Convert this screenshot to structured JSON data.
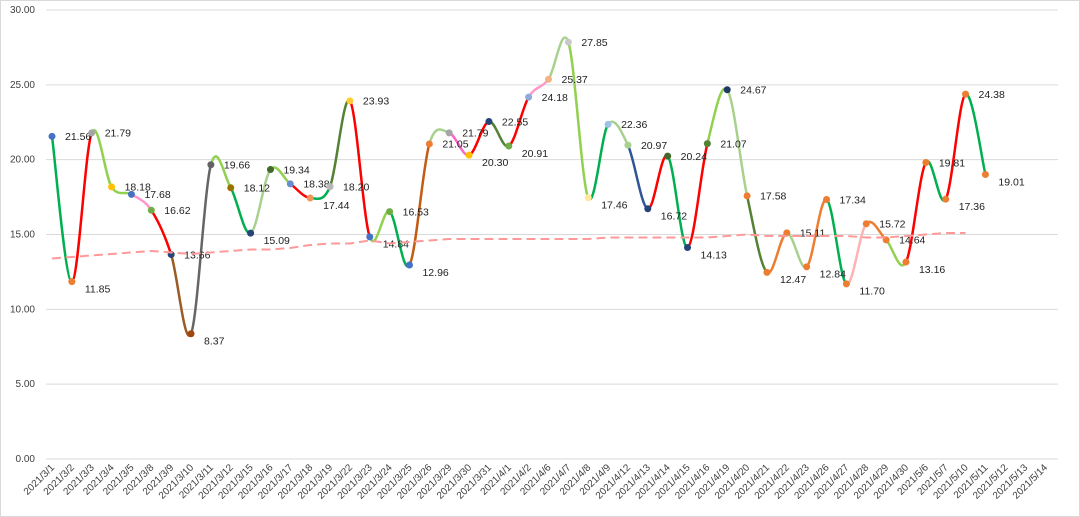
{
  "chart_data": {
    "type": "line",
    "categories": [
      "2021/3/1",
      "2021/3/2",
      "2021/3/3",
      "2021/3/4",
      "2021/3/5",
      "2021/3/8",
      "2021/3/9",
      "2021/3/10",
      "2021/3/11",
      "2021/3/12",
      "2021/3/15",
      "2021/3/16",
      "2021/3/17",
      "2021/3/18",
      "2021/3/19",
      "2021/3/22",
      "2021/3/23",
      "2021/3/24",
      "2021/3/25",
      "2021/3/26",
      "2021/3/29",
      "2021/3/30",
      "2021/3/31",
      "2021/4/1",
      "2021/4/2",
      "2021/4/6",
      "2021/4/7",
      "2021/4/8",
      "2021/4/9",
      "2021/4/12",
      "2021/4/13",
      "2021/4/14",
      "2021/4/15",
      "2021/4/16",
      "2021/4/19",
      "2021/4/20",
      "2021/4/21",
      "2021/4/22",
      "2021/4/23",
      "2021/4/26",
      "2021/4/27",
      "2021/4/28",
      "2021/4/29",
      "2021/4/30",
      "2021/5/6",
      "2021/5/7",
      "2021/5/10",
      "2021/5/11",
      "2021/5/12",
      "2021/5/13",
      "2021/5/14"
    ],
    "series": [
      {
        "values": [
          21.56,
          11.85,
          21.79,
          18.18,
          17.68,
          16.62,
          13.66,
          8.37,
          19.66,
          18.12,
          15.09,
          19.34,
          18.38,
          17.44,
          18.2,
          23.93,
          14.84,
          16.53,
          12.96,
          21.05,
          21.79,
          20.3,
          22.55,
          20.91,
          24.18,
          25.37,
          27.85,
          17.46,
          22.36,
          20.97,
          16.72,
          20.24,
          14.13,
          21.07,
          24.67,
          17.58,
          12.47,
          15.11,
          12.84,
          17.34,
          11.7,
          15.72,
          14.64,
          13.16,
          19.81,
          17.36,
          24.38,
          19.01,
          null,
          null,
          null
        ],
        "value_labels": [
          "21.56",
          "11.85",
          "21.79",
          "18.18",
          "17.68",
          "16.62",
          "13.66",
          "8.37",
          "19.66",
          "18.12",
          "15.09",
          "19.34",
          "18.38",
          "17.44",
          "18.20",
          "23.93",
          "14.84",
          "16.53",
          "12.96",
          "21.05",
          "21.79",
          "20.30",
          "22.55",
          "20.91",
          "24.18",
          "25.37",
          "27.85",
          "17.46",
          "22.36",
          "20.97",
          "16.72",
          "20.24",
          "14.13",
          "21.07",
          "24.67",
          "17.58",
          "12.47",
          "15.11",
          "12.84",
          "17.34",
          "11.70",
          "15.72",
          "14.64",
          "13.16",
          "19.81",
          "17.36",
          "24.38",
          "19.01",
          null,
          null,
          null
        ],
        "smooth": true,
        "segment_colors": [
          "#00b050",
          "#ff0000",
          "#92d050",
          "#92d050",
          "#ff99cc",
          "#ff0000",
          "#9c5b24",
          "#666666",
          "#92d050",
          "#00b050",
          "#a9d18e",
          "#92d050",
          "#ff0000",
          "#00b050",
          "#548235",
          "#ff0000",
          "#92d050",
          "#00b050",
          "#c55a11",
          "#a9d18e",
          "#ff66cc",
          "#ff0000",
          "#548235",
          "#ff0000",
          "#ff99cc",
          "#a9d18e",
          "#92d050",
          "#00b050",
          "#a9d18e",
          "#2f5597",
          "#ff0000",
          "#00b050",
          "#ff0000",
          "#92d050",
          "#a9d18e",
          "#548235",
          "#ed7d31",
          "#a9d18e",
          "#ed7d31",
          "#00b050",
          "#ffb3b3",
          "#ed7d31",
          "#92d050",
          "#ff0000",
          "#00b050",
          "#ff0000",
          "#00b050"
        ],
        "marker_colors": [
          "#4472c4",
          "#ed7d31",
          "#a5a5a5",
          "#ffc000",
          "#4472c4",
          "#70ad47",
          "#264478",
          "#9e480e",
          "#636363",
          "#997300",
          "#264478",
          "#43682b",
          "#698ed0",
          "#f1975a",
          "#b7b7b7",
          "#ffcd33",
          "#4472c4",
          "#70ad47",
          "#4472c4",
          "#ed7d31",
          "#a5a5a5",
          "#ffc000",
          "#264478",
          "#70ad47",
          "#8faadc",
          "#f4b183",
          "#c9c9c9",
          "#ffe699",
          "#9dc3e6",
          "#a9d18e",
          "#264478",
          "#43682b",
          "#264478",
          "#548235",
          "#203864",
          "#ed7d31",
          "#ed7d31",
          "#ed7d31",
          "#ed7d31",
          "#ed7d31",
          "#ed7d31",
          "#ed7d31",
          "#ed7d31",
          "#ed7d31",
          "#ed7d31",
          "#ed7d31",
          "#ed7d31",
          "#ed7d31"
        ]
      },
      {
        "values": [
          13.4,
          13.5,
          13.6,
          13.7,
          13.8,
          13.9,
          13.8,
          13.7,
          13.8,
          13.9,
          14.0,
          14.0,
          14.1,
          14.3,
          14.4,
          14.4,
          14.6,
          14.4,
          14.5,
          14.6,
          14.7,
          14.7,
          14.7,
          14.7,
          14.7,
          14.7,
          14.7,
          14.7,
          14.8,
          14.8,
          14.8,
          14.8,
          14.8,
          14.8,
          14.9,
          15.0,
          14.9,
          14.9,
          14.9,
          14.9,
          14.9,
          14.8,
          14.8,
          14.9,
          15.0,
          15.1,
          15.1,
          null,
          null,
          null,
          null
        ],
        "color": "#ff9999",
        "dashed": true
      }
    ],
    "ylim": [
      0,
      30
    ],
    "yticks": [
      {
        "value": 0,
        "label": "0.00"
      },
      {
        "value": 5,
        "label": "5.00"
      },
      {
        "value": 10,
        "label": "10.00"
      },
      {
        "value": 15,
        "label": "15.00"
      },
      {
        "value": 20,
        "label": "20.00"
      },
      {
        "value": 25,
        "label": "25.00"
      },
      {
        "value": 30,
        "label": "30.00"
      }
    ],
    "grid": true
  }
}
